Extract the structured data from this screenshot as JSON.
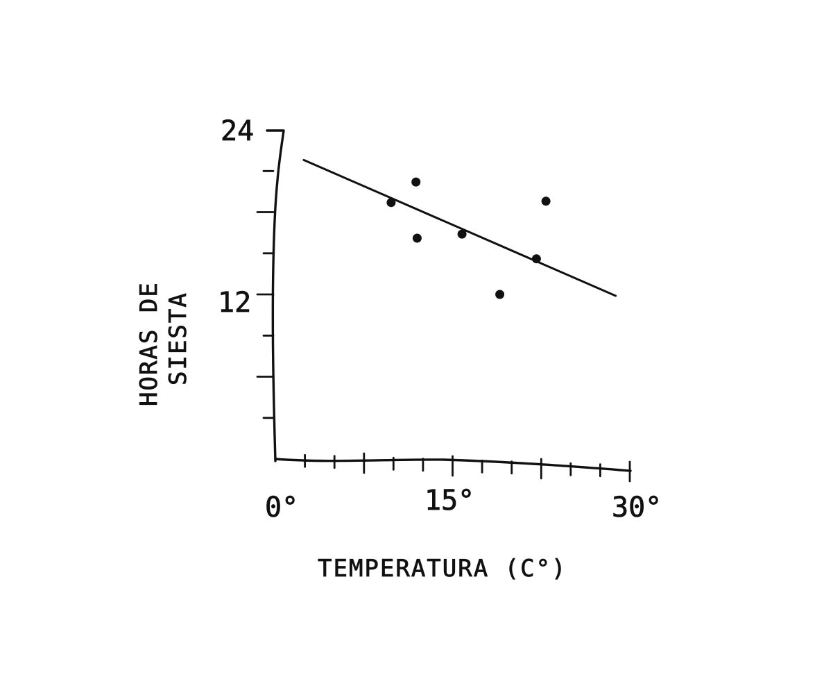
{
  "chart_data": {
    "type": "scatter",
    "title": "",
    "xlabel": "TEMPERATURA (C°)",
    "ylabel_lines": [
      "HORAS DE",
      "SIESTA"
    ],
    "xlim": [
      0,
      30
    ],
    "ylim": [
      0,
      24
    ],
    "x_tick_labels": [
      {
        "value": 0,
        "label": "0°"
      },
      {
        "value": 15,
        "label": "15°"
      },
      {
        "value": 30,
        "label": "30°"
      }
    ],
    "y_tick_labels": [
      {
        "value": 12,
        "label": "12"
      },
      {
        "value": 24,
        "label": "24"
      }
    ],
    "points": [
      {
        "x": 9.8,
        "y": 18.7
      },
      {
        "x": 11.9,
        "y": 20.2
      },
      {
        "x": 12.0,
        "y": 16.1
      },
      {
        "x": 15.8,
        "y": 16.4
      },
      {
        "x": 19.0,
        "y": 12.0
      },
      {
        "x": 22.1,
        "y": 14.6
      },
      {
        "x": 22.9,
        "y": 18.8
      }
    ],
    "trend_line": {
      "x": [
        2.4,
        28.8
      ],
      "y": [
        21.8,
        11.9
      ]
    },
    "grid": false,
    "legend": "none"
  }
}
